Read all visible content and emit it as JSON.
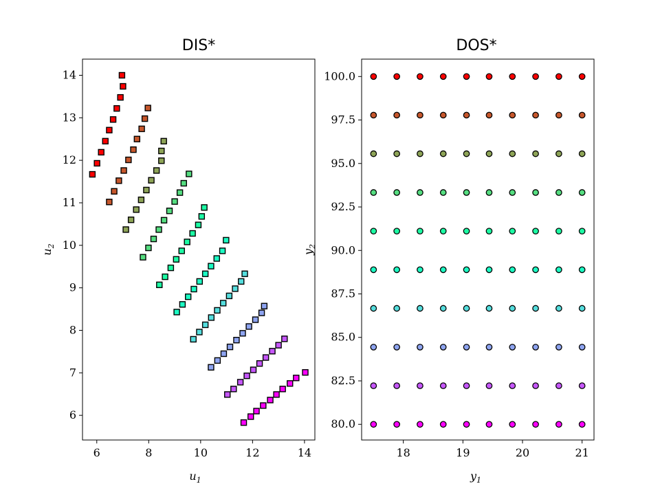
{
  "chart_data": [
    {
      "type": "scatter",
      "title": "DIS*",
      "xlabel": "u",
      "xlabel_sub": "1",
      "ylabel": "u",
      "ylabel_sub": "2",
      "xlim": [
        5.45,
        14.4
      ],
      "ylim": [
        5.42,
        14.38
      ],
      "xticks": [
        6,
        8,
        10,
        12,
        14
      ],
      "yticks": [
        6,
        7,
        8,
        9,
        10,
        11,
        12,
        13,
        14
      ],
      "marker": "square",
      "grid": false,
      "series": [
        {
          "points": [
            [
              11.66,
              5.83
            ],
            [
              11.93,
              5.97
            ],
            [
              12.15,
              6.1
            ],
            [
              12.41,
              6.23
            ],
            [
              12.68,
              6.36
            ],
            [
              12.92,
              6.49
            ],
            [
              13.16,
              6.62
            ],
            [
              13.44,
              6.75
            ],
            [
              13.68,
              6.88
            ],
            [
              14.03,
              7.01
            ]
          ]
        },
        {
          "points": [
            [
              11.03,
              6.49
            ],
            [
              11.27,
              6.62
            ],
            [
              11.53,
              6.78
            ],
            [
              11.78,
              6.93
            ],
            [
              12.03,
              7.07
            ],
            [
              12.27,
              7.22
            ],
            [
              12.51,
              7.36
            ],
            [
              12.76,
              7.51
            ],
            [
              13.0,
              7.65
            ],
            [
              13.23,
              7.8
            ]
          ]
        },
        {
          "points": [
            [
              10.4,
              7.13
            ],
            [
              10.65,
              7.29
            ],
            [
              10.89,
              7.45
            ],
            [
              11.13,
              7.61
            ],
            [
              11.38,
              7.77
            ],
            [
              11.62,
              7.93
            ],
            [
              11.86,
              8.09
            ],
            [
              12.11,
              8.25
            ],
            [
              12.35,
              8.41
            ],
            [
              12.45,
              8.57
            ]
          ]
        },
        {
          "points": [
            [
              9.72,
              7.79
            ],
            [
              9.95,
              7.96
            ],
            [
              10.18,
              8.13
            ],
            [
              10.41,
              8.3
            ],
            [
              10.64,
              8.47
            ],
            [
              10.87,
              8.64
            ],
            [
              11.1,
              8.81
            ],
            [
              11.33,
              8.98
            ],
            [
              11.56,
              9.15
            ],
            [
              11.7,
              9.33
            ]
          ]
        },
        {
          "points": [
            [
              9.08,
              8.43
            ],
            [
              9.3,
              8.61
            ],
            [
              9.52,
              8.79
            ],
            [
              9.74,
              8.97
            ],
            [
              9.96,
              9.15
            ],
            [
              10.18,
              9.33
            ],
            [
              10.4,
              9.51
            ],
            [
              10.62,
              9.69
            ],
            [
              10.84,
              9.87
            ],
            [
              10.98,
              10.12
            ]
          ]
        },
        {
          "points": [
            [
              8.41,
              9.07
            ],
            [
              8.63,
              9.26
            ],
            [
              8.85,
              9.47
            ],
            [
              9.06,
              9.67
            ],
            [
              9.27,
              9.87
            ],
            [
              9.48,
              10.08
            ],
            [
              9.69,
              10.28
            ],
            [
              9.91,
              10.48
            ],
            [
              10.04,
              10.68
            ],
            [
              10.14,
              10.89
            ]
          ]
        },
        {
          "points": [
            [
              7.78,
              9.72
            ],
            [
              7.99,
              9.94
            ],
            [
              8.19,
              10.15
            ],
            [
              8.39,
              10.37
            ],
            [
              8.59,
              10.59
            ],
            [
              8.8,
              10.81
            ],
            [
              9.0,
              11.03
            ],
            [
              9.2,
              11.24
            ],
            [
              9.35,
              11.46
            ],
            [
              9.55,
              11.68
            ]
          ]
        },
        {
          "points": [
            [
              7.12,
              10.37
            ],
            [
              7.32,
              10.6
            ],
            [
              7.52,
              10.84
            ],
            [
              7.71,
              11.07
            ],
            [
              7.91,
              11.3
            ],
            [
              8.1,
              11.53
            ],
            [
              8.3,
              11.76
            ],
            [
              8.49,
              11.99
            ],
            [
              8.49,
              12.22
            ],
            [
              8.58,
              12.45
            ]
          ]
        },
        {
          "points": [
            [
              6.48,
              11.02
            ],
            [
              6.67,
              11.27
            ],
            [
              6.85,
              11.52
            ],
            [
              7.04,
              11.76
            ],
            [
              7.22,
              12.01
            ],
            [
              7.41,
              12.25
            ],
            [
              7.55,
              12.5
            ],
            [
              7.73,
              12.74
            ],
            [
              7.85,
              12.98
            ],
            [
              7.97,
              13.23
            ]
          ]
        },
        {
          "points": [
            [
              5.83,
              11.67
            ],
            [
              6.01,
              11.93
            ],
            [
              6.17,
              12.19
            ],
            [
              6.33,
              12.45
            ],
            [
              6.48,
              12.71
            ],
            [
              6.63,
              12.96
            ],
            [
              6.77,
              13.22
            ],
            [
              6.91,
              13.48
            ],
            [
              7.01,
              13.74
            ],
            [
              6.97,
              14.0
            ]
          ]
        }
      ]
    },
    {
      "type": "scatter",
      "title": "DOS*",
      "xlabel": "y",
      "xlabel_sub": "1",
      "ylabel": "y",
      "ylabel_sub": "2",
      "xlim": [
        17.3,
        21.2
      ],
      "ylim": [
        79.1,
        101.0
      ],
      "xticks": [
        18,
        19,
        20,
        21
      ],
      "yticks": [
        "80.0",
        "82.5",
        "85.0",
        "87.5",
        "90.0",
        "92.5",
        "95.0",
        "97.5",
        "100.0"
      ],
      "x": [
        17.5,
        17.89,
        18.28,
        18.67,
        19.06,
        19.44,
        19.83,
        20.22,
        20.61,
        21.0
      ],
      "y": [
        80.0,
        82.22,
        84.44,
        86.67,
        88.89,
        91.11,
        93.33,
        95.56,
        97.78,
        100.0
      ],
      "marker": "circle",
      "grid": false
    }
  ]
}
